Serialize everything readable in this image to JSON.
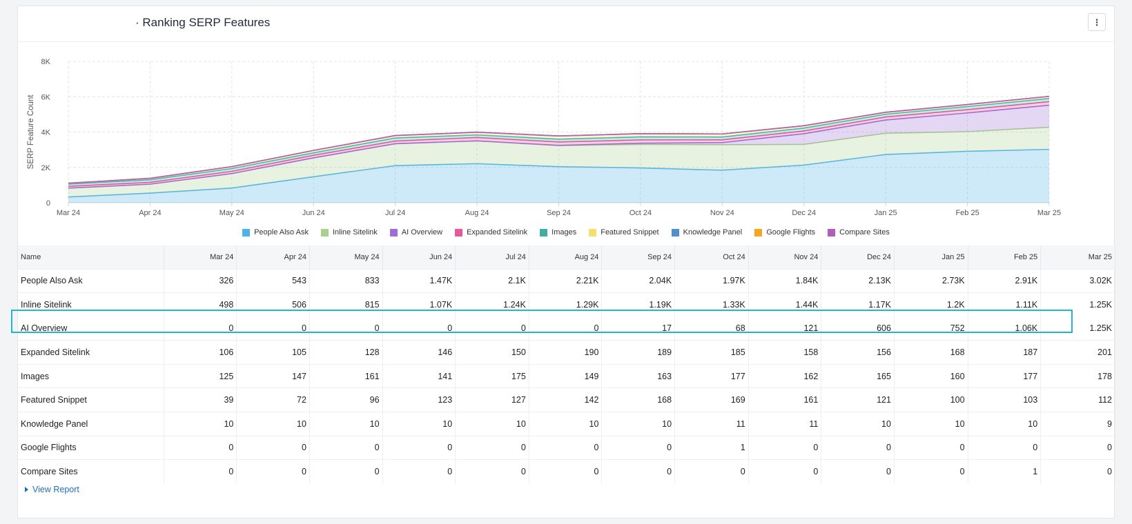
{
  "header": {
    "title": "· Ranking SERP Features",
    "menu_icon": "⋮"
  },
  "chart_data": {
    "type": "area",
    "stacked": true,
    "ylabel": "SERP Feature Count",
    "yticks": [
      "0",
      "2K",
      "4K",
      "6K",
      "8K"
    ],
    "ylim": [
      0,
      8000
    ],
    "x": [
      "Mar 24",
      "Apr 24",
      "May 24",
      "Jun 24",
      "Jul 24",
      "Aug 24",
      "Sep 24",
      "Oct 24",
      "Nov 24",
      "Dec 24",
      "Jan 25",
      "Feb 25",
      "Mar 25"
    ],
    "grid": true,
    "legend_position": "bottom",
    "series": [
      {
        "name": "People Also Ask",
        "color": "#4fb3e8",
        "values": [
          326,
          543,
          833,
          1470,
          2100,
          2210,
          2040,
          1970,
          1840,
          2130,
          2730,
          2910,
          3020
        ]
      },
      {
        "name": "Inline Sitelink",
        "color": "#a9d18e",
        "values": [
          498,
          506,
          815,
          1070,
          1240,
          1290,
          1190,
          1330,
          1440,
          1170,
          1200,
          1110,
          1250
        ]
      },
      {
        "name": "AI Overview",
        "color": "#9b6fd6",
        "values": [
          0,
          0,
          0,
          0,
          0,
          0,
          17,
          68,
          121,
          606,
          752,
          1060,
          1250
        ]
      },
      {
        "name": "Expanded Sitelink",
        "color": "#e8579b",
        "values": [
          106,
          105,
          128,
          146,
          150,
          190,
          189,
          185,
          158,
          156,
          168,
          187,
          201
        ]
      },
      {
        "name": "Images",
        "color": "#3fada8",
        "values": [
          125,
          147,
          161,
          141,
          175,
          149,
          163,
          177,
          162,
          165,
          160,
          177,
          178
        ]
      },
      {
        "name": "Featured Snippet",
        "color": "#f3df6a",
        "values": [
          39,
          72,
          96,
          123,
          127,
          142,
          168,
          169,
          161,
          121,
          100,
          103,
          112
        ]
      },
      {
        "name": "Knowledge Panel",
        "color": "#4f8fd0",
        "values": [
          10,
          10,
          10,
          10,
          10,
          10,
          10,
          11,
          11,
          10,
          10,
          10,
          9
        ]
      },
      {
        "name": "Google Flights",
        "color": "#f5a623",
        "values": [
          0,
          0,
          0,
          0,
          0,
          0,
          0,
          1,
          0,
          0,
          0,
          0,
          0
        ]
      },
      {
        "name": "Compare Sites",
        "color": "#b05fbf",
        "values": [
          0,
          0,
          0,
          0,
          0,
          0,
          0,
          0,
          0,
          0,
          0,
          1,
          0
        ]
      }
    ]
  },
  "table": {
    "name_header": "Name",
    "headers": [
      "Mar 24",
      "Apr 24",
      "May 24",
      "Jun 24",
      "Jul 24",
      "Aug 24",
      "Sep 24",
      "Oct 24",
      "Nov 24",
      "Dec 24",
      "Jan 25",
      "Feb 25",
      "Mar 25"
    ],
    "rows": [
      {
        "name": "People Also Ask",
        "cells": [
          "326",
          "543",
          "833",
          "1.47K",
          "2.1K",
          "2.21K",
          "2.04K",
          "1.97K",
          "1.84K",
          "2.13K",
          "2.73K",
          "2.91K",
          "3.02K"
        ]
      },
      {
        "name": "Inline Sitelink",
        "cells": [
          "498",
          "506",
          "815",
          "1.07K",
          "1.24K",
          "1.29K",
          "1.19K",
          "1.33K",
          "1.44K",
          "1.17K",
          "1.2K",
          "1.11K",
          "1.25K"
        ]
      },
      {
        "name": "AI Overview",
        "cells": [
          "0",
          "0",
          "0",
          "0",
          "0",
          "0",
          "17",
          "68",
          "121",
          "606",
          "752",
          "1.06K",
          "1.25K"
        ],
        "highlighted": true
      },
      {
        "name": "Expanded Sitelink",
        "cells": [
          "106",
          "105",
          "128",
          "146",
          "150",
          "190",
          "189",
          "185",
          "158",
          "156",
          "168",
          "187",
          "201"
        ]
      },
      {
        "name": "Images",
        "cells": [
          "125",
          "147",
          "161",
          "141",
          "175",
          "149",
          "163",
          "177",
          "162",
          "165",
          "160",
          "177",
          "178"
        ]
      },
      {
        "name": "Featured Snippet",
        "cells": [
          "39",
          "72",
          "96",
          "123",
          "127",
          "142",
          "168",
          "169",
          "161",
          "121",
          "100",
          "103",
          "112"
        ]
      },
      {
        "name": "Knowledge Panel",
        "cells": [
          "10",
          "10",
          "10",
          "10",
          "10",
          "10",
          "10",
          "11",
          "11",
          "10",
          "10",
          "10",
          "9"
        ]
      },
      {
        "name": "Google Flights",
        "cells": [
          "0",
          "0",
          "0",
          "0",
          "0",
          "0",
          "0",
          "1",
          "0",
          "0",
          "0",
          "0",
          "0"
        ]
      },
      {
        "name": "Compare Sites",
        "cells": [
          "0",
          "0",
          "0",
          "0",
          "0",
          "0",
          "0",
          "0",
          "0",
          "0",
          "0",
          "1",
          "0"
        ]
      }
    ]
  },
  "footer": {
    "view_report_label": "View Report"
  }
}
